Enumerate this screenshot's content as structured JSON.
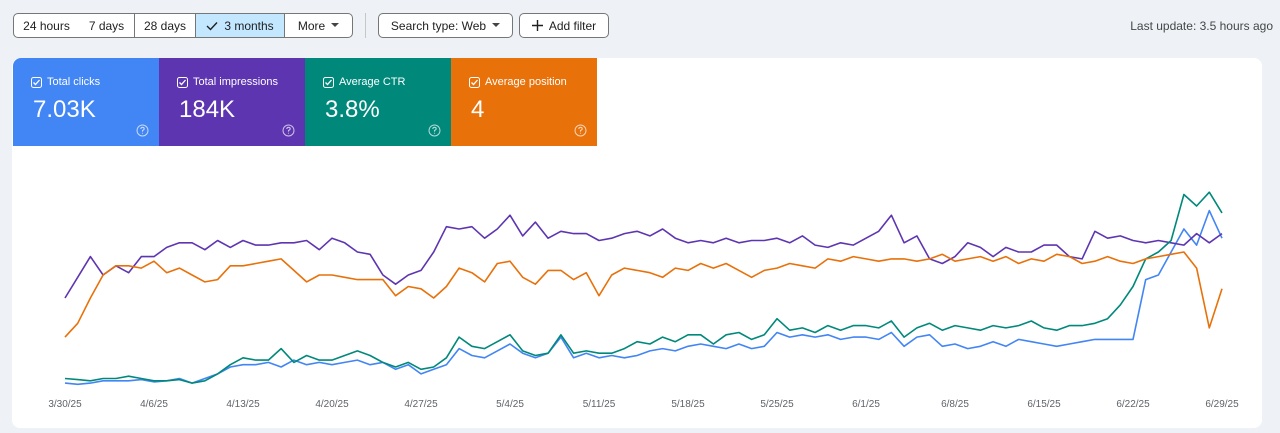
{
  "toolbar": {
    "date_ranges": [
      "24 hours",
      "7 days",
      "28 days",
      "3 months",
      "More"
    ],
    "search_type": "Search type: Web",
    "add_filter": "Add filter",
    "last_update": "Last update: 3.5 hours ago"
  },
  "metrics": [
    {
      "label": "Total clicks",
      "value": "7.03K",
      "color": "#4285f4"
    },
    {
      "label": "Total impressions",
      "value": "184K",
      "color": "#5e35b1"
    },
    {
      "label": "Average CTR",
      "value": "3.8%",
      "color": "#00897b"
    },
    {
      "label": "Average position",
      "value": "4",
      "color": "#e8710a"
    }
  ],
  "chart": {
    "type": "line",
    "x_labels": [
      "3/30/25",
      "4/6/25",
      "4/13/25",
      "4/20/25",
      "4/27/25",
      "5/4/25",
      "5/11/25",
      "5/18/25",
      "5/25/25",
      "6/1/25",
      "6/8/25",
      "6/15/25",
      "6/22/25",
      "6/29/25"
    ],
    "ylim": [
      0,
      100
    ],
    "series": [
      {
        "values": [
          3,
          2.5,
          3,
          4,
          4,
          4,
          4.5,
          3.5,
          4,
          5,
          3,
          5,
          7,
          10,
          11,
          11,
          12,
          10,
          13,
          11,
          12,
          11,
          12,
          13,
          11,
          12,
          9,
          11,
          7,
          9,
          11,
          18,
          15,
          14,
          17,
          20,
          16,
          14,
          16,
          23,
          14,
          16,
          14,
          15,
          14,
          15,
          17,
          18,
          17,
          19,
          20,
          19,
          18,
          20,
          18,
          19,
          25,
          23,
          24,
          23,
          24,
          22,
          23,
          23,
          22,
          25,
          19,
          23,
          24,
          19,
          20,
          18,
          19,
          21,
          19,
          22,
          21,
          20,
          19,
          20,
          21,
          22,
          22,
          22,
          22,
          48,
          50,
          60,
          70,
          63,
          78,
          66
        ]
      },
      {
        "values": [
          40,
          49,
          58,
          50,
          54,
          51,
          58,
          58,
          62,
          64,
          64,
          61,
          65,
          62,
          65,
          63,
          63,
          64,
          64,
          65,
          61,
          66,
          64,
          60,
          59,
          50,
          46,
          50,
          52,
          60,
          71,
          70,
          71,
          66,
          70,
          76,
          67,
          73,
          66,
          69,
          68,
          68,
          65,
          66,
          68,
          69,
          67,
          70,
          66,
          64,
          65,
          64,
          66,
          64,
          65,
          65,
          66,
          64,
          67,
          63,
          62,
          64,
          63,
          66,
          69,
          76,
          64,
          67,
          57,
          55,
          58,
          64,
          62,
          58,
          62,
          60,
          60,
          63,
          63,
          58,
          57,
          69,
          66,
          67,
          65,
          64,
          65,
          64,
          63,
          68,
          64,
          68
        ]
      },
      {
        "values": [
          5,
          4.5,
          4,
          5,
          5,
          6,
          5,
          4,
          4,
          4.5,
          3,
          4,
          7,
          11,
          14,
          13,
          13,
          18,
          12,
          15,
          13,
          13,
          15,
          17,
          15,
          12,
          10,
          12,
          9,
          10,
          14,
          23,
          19,
          18,
          21,
          24,
          17,
          15,
          16,
          24,
          16,
          17,
          16,
          16,
          18,
          21,
          20,
          23,
          21,
          24,
          24,
          20,
          24,
          25,
          22,
          24,
          31,
          26,
          27,
          25,
          28,
          26,
          28,
          28,
          27,
          30,
          23,
          27,
          29,
          26,
          28,
          27,
          26,
          28,
          27,
          28,
          30,
          27,
          26,
          28,
          28,
          29,
          31,
          37,
          45,
          57,
          60,
          65,
          85,
          80,
          86,
          77
        ]
      },
      {
        "values": [
          23,
          29,
          40,
          50,
          54,
          54,
          53,
          56,
          51,
          53,
          50,
          47,
          48,
          54,
          54,
          55,
          56,
          57,
          52,
          47,
          50,
          50,
          49,
          48,
          48,
          48,
          41,
          45,
          44,
          40,
          45,
          53,
          51,
          47,
          55,
          56,
          49,
          46,
          52,
          52,
          48,
          51,
          41,
          50,
          53,
          52,
          51,
          49,
          53,
          52,
          55,
          53,
          55,
          52,
          49,
          52,
          53,
          55,
          54,
          53,
          57,
          56,
          58,
          57,
          56,
          57,
          57,
          56,
          57,
          59,
          56,
          57,
          58,
          56,
          58,
          55,
          57,
          56,
          59,
          58,
          55,
          56,
          58,
          56,
          55,
          57,
          58,
          59,
          60,
          53,
          27,
          44
        ]
      }
    ]
  }
}
